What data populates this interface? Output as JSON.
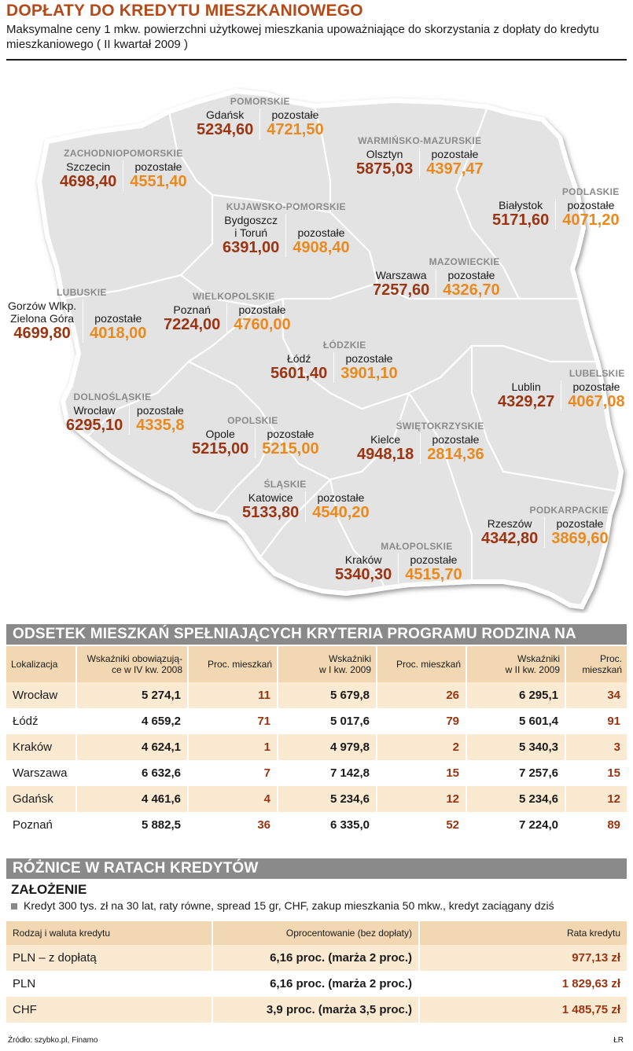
{
  "header": {
    "title": "DOPŁATY DO KREDYTU MIESZKANIOWEGO",
    "subtitle": "Maksymalne ceny 1 mkw. powierzchni użytkowej mieszkania upoważniające do skorzystania z dopłaty do kredytu mieszkaniowego ( II kwartał 2009 )"
  },
  "colors": {
    "accent_dark": "#9a3412",
    "accent_light": "#ea8a1e",
    "map_fill": "#e3e3e3",
    "bar_gray": "#8a8a8a",
    "table_header": "#f1d7b2",
    "table_row": "#fbead2"
  },
  "map": {
    "other_label": "pozostałe",
    "regions": [
      {
        "name": "POMORSKIE",
        "city": "Gdańsk",
        "city_value": "5234,60",
        "other_value": "4721,50"
      },
      {
        "name": "ZACHODNIOPOMORSKIE",
        "city": "Szczecin",
        "city_value": "4698,40",
        "other_value": "4551,40"
      },
      {
        "name": "WARMIŃSKO-MAZURSKIE",
        "city": "Olsztyn",
        "city_value": "5875,03",
        "other_value": "4397,47"
      },
      {
        "name": "KUJAWSKO-POMORSKIE",
        "city": "Bydgoszcz\ni Toruń",
        "city_value": "6391,00",
        "other_value": "4908,40"
      },
      {
        "name": "PODLASKIE",
        "city": "Białystok",
        "city_value": "5171,60",
        "other_value": "4071,20"
      },
      {
        "name": "MAZOWIECKIE",
        "city": "Warszawa",
        "city_value": "7257,60",
        "other_value": "4326,70"
      },
      {
        "name": "LUBUSKIE",
        "city": "Gorzów Wlkp.\nZielona Góra",
        "city_value": "4699,80",
        "other_value": "4018,00"
      },
      {
        "name": "WIELKOPOLSKIE",
        "city": "Poznań",
        "city_value": "7224,00",
        "other_value": "4760,00"
      },
      {
        "name": "ŁÓDZKIE",
        "city": "Łódź",
        "city_value": "5601,40",
        "other_value": "3901,10"
      },
      {
        "name": "LUBELSKIE",
        "city": "Lublin",
        "city_value": "4329,27",
        "other_value": "4067,08"
      },
      {
        "name": "DOLNOŚLĄSKIE",
        "city": "Wrocław",
        "city_value": "6295,10",
        "other_value": "4335,8"
      },
      {
        "name": "OPOLSKIE",
        "city": "Opole",
        "city_value": "5215,00",
        "other_value": "5215,00"
      },
      {
        "name": "ŚWIĘTOKRZYSKIE",
        "city": "Kielce",
        "city_value": "4948,18",
        "other_value": "2814,36"
      },
      {
        "name": "ŚLĄSKIE",
        "city": "Katowice",
        "city_value": "5133,80",
        "other_value": "4540,20"
      },
      {
        "name": "PODKARPACKIE",
        "city": "Rzeszów",
        "city_value": "4342,80",
        "other_value": "3869,60"
      },
      {
        "name": "MAŁOPOLSKIE",
        "city": "Kraków",
        "city_value": "5340,30",
        "other_value": "4515,70"
      }
    ]
  },
  "section1": {
    "title": "ODSETEK MIESZKAŃ SPEŁNIAJĄCYCH KRYTERIA PROGRAMU RODZINA NA SWOIM",
    "headers": [
      "Lokalizacja",
      "Wskaźniki obowiązują-\nce w IV kw. 2008",
      "Proc. mieszkań",
      "Wskaźniki\nw I kw. 2009",
      "Proc. mieszkań",
      "Wskaźniki\nw II kw. 2009",
      "Proc. mieszkań"
    ],
    "rows": [
      [
        "Wrocław",
        "5 274,1",
        "11",
        "5 679,8",
        "26",
        "6 295,1",
        "34"
      ],
      [
        "Łódź",
        "4 659,2",
        "71",
        "5 017,6",
        "79",
        "5 601,4",
        "91"
      ],
      [
        "Kraków",
        "4 624,1",
        "1",
        "4 979,8",
        "2",
        "5 340,3",
        "3"
      ],
      [
        "Warszawa",
        "6 632,6",
        "7",
        "7 142,8",
        "15",
        "7 257,6",
        "15"
      ],
      [
        "Gdańsk",
        "4 461,6",
        "4",
        "5 234,6",
        "12",
        "5 234,6",
        "12"
      ],
      [
        "Poznań",
        "5 882,5",
        "36",
        "6 335,0",
        "52",
        "7 224,0",
        "89"
      ]
    ]
  },
  "section2": {
    "title": "RÓŻNICE W RATACH KREDYTÓW",
    "assumption_title": "ZAŁOŻENIE",
    "assumption_text": "Kredyt 300 tys. zł na 30 lat, raty równe, spread 15 gr, CHF, zakup mieszkania 50 mkw., kredyt zaciągany dziś",
    "headers": [
      "Rodzaj i waluta kredytu",
      "Oprocentowanie (bez dopłaty)",
      "Rata kredytu"
    ],
    "rows": [
      [
        "PLN – z dopłatą",
        "6,16 proc. (marża 2 proc.)",
        "977,13 zł"
      ],
      [
        "PLN",
        "6,16 proc. (marża 2 proc.)",
        "1 829,63 zł"
      ],
      [
        "CHF",
        "3,9 proc. (marża 3,5 proc.)",
        "1 485,75 zł"
      ]
    ]
  },
  "footer": {
    "source": "Źródło: szybko.pl, Finamo",
    "signature": "ŁR"
  }
}
